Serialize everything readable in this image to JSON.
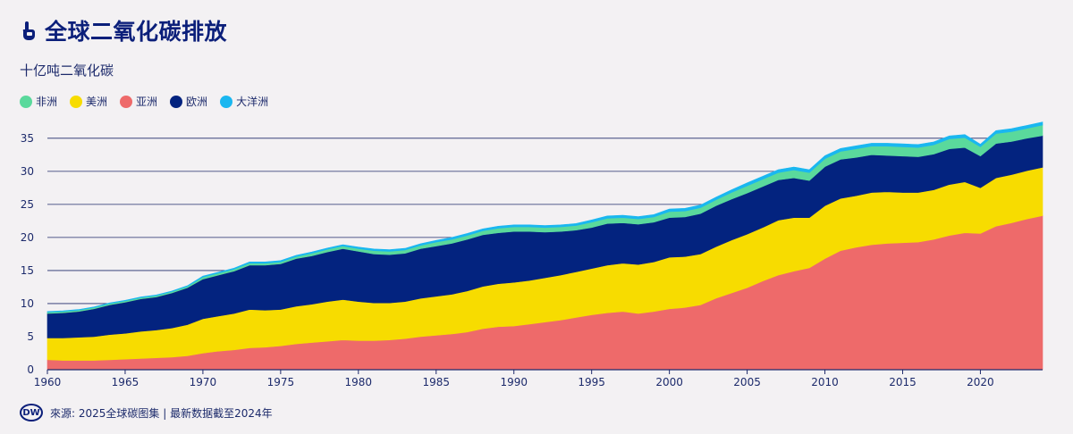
{
  "header": {
    "title": "全球二氧化碳排放",
    "subtitle": "十亿吨二氧化碳"
  },
  "footer": {
    "logo_text": "DW",
    "source": "來源: 2025全球碳图集 | 最新数据截至2024年"
  },
  "chart_data": {
    "type": "area",
    "stacked": true,
    "title": "全球二氧化碳排放",
    "subtitle": "十亿吨二氧化碳",
    "xlim": [
      1960,
      2024
    ],
    "ylim": [
      0,
      37
    ],
    "yticks": [
      0,
      5,
      10,
      15,
      20,
      25,
      30,
      35
    ],
    "xticks": [
      1960,
      1965,
      1970,
      1975,
      1980,
      1985,
      1990,
      1995,
      2000,
      2005,
      2010,
      2015,
      2020
    ],
    "grid": "horizontal",
    "legend_position": "top-left",
    "x": [
      1960,
      1961,
      1962,
      1963,
      1964,
      1965,
      1966,
      1967,
      1968,
      1969,
      1970,
      1971,
      1972,
      1973,
      1974,
      1975,
      1976,
      1977,
      1978,
      1979,
      1980,
      1981,
      1982,
      1983,
      1984,
      1985,
      1986,
      1987,
      1988,
      1989,
      1990,
      1991,
      1992,
      1993,
      1994,
      1995,
      1996,
      1997,
      1998,
      1999,
      2000,
      2001,
      2002,
      2003,
      2004,
      2005,
      2006,
      2007,
      2008,
      2009,
      2010,
      2011,
      2012,
      2013,
      2014,
      2015,
      2016,
      2017,
      2018,
      2019,
      2020,
      2021,
      2022,
      2023,
      2024
    ],
    "legend_order": [
      "非洲",
      "美洲",
      "亚洲",
      "欧洲",
      "大洋洲"
    ],
    "series": [
      {
        "name": "亚洲",
        "color": "#ee6a6a",
        "values": [
          1.5,
          1.4,
          1.4,
          1.4,
          1.5,
          1.6,
          1.7,
          1.8,
          1.9,
          2.1,
          2.5,
          2.8,
          3.0,
          3.3,
          3.4,
          3.6,
          3.9,
          4.1,
          4.3,
          4.5,
          4.4,
          4.4,
          4.5,
          4.7,
          5.0,
          5.2,
          5.4,
          5.7,
          6.2,
          6.5,
          6.6,
          6.9,
          7.2,
          7.5,
          7.9,
          8.3,
          8.6,
          8.8,
          8.5,
          8.8,
          9.2,
          9.4,
          9.8,
          10.8,
          11.6,
          12.4,
          13.4,
          14.3,
          14.9,
          15.4,
          16.8,
          18.0,
          18.5,
          18.9,
          19.1,
          19.2,
          19.3,
          19.7,
          20.3,
          20.7,
          20.6,
          21.7,
          22.2,
          22.8,
          23.3
        ]
      },
      {
        "name": "美洲",
        "color": "#f7dc00",
        "values": [
          3.3,
          3.4,
          3.5,
          3.6,
          3.8,
          3.9,
          4.1,
          4.2,
          4.4,
          4.7,
          5.2,
          5.3,
          5.5,
          5.8,
          5.6,
          5.5,
          5.7,
          5.8,
          6.0,
          6.1,
          5.9,
          5.7,
          5.6,
          5.6,
          5.8,
          5.9,
          6.0,
          6.2,
          6.4,
          6.5,
          6.6,
          6.6,
          6.7,
          6.8,
          6.9,
          7.0,
          7.2,
          7.3,
          7.4,
          7.5,
          7.8,
          7.7,
          7.7,
          7.8,
          8.0,
          8.1,
          8.1,
          8.3,
          8.1,
          7.6,
          8.0,
          7.9,
          7.8,
          7.9,
          7.8,
          7.6,
          7.5,
          7.5,
          7.7,
          7.7,
          6.9,
          7.3,
          7.3,
          7.3,
          7.3
        ]
      },
      {
        "name": "欧洲",
        "color": "#03237f",
        "values": [
          3.7,
          3.8,
          3.9,
          4.2,
          4.5,
          4.7,
          4.9,
          5.0,
          5.3,
          5.6,
          6.0,
          6.2,
          6.4,
          6.7,
          6.8,
          6.9,
          7.2,
          7.3,
          7.5,
          7.7,
          7.6,
          7.4,
          7.3,
          7.3,
          7.5,
          7.6,
          7.7,
          7.8,
          7.8,
          7.7,
          7.7,
          7.4,
          6.9,
          6.6,
          6.3,
          6.2,
          6.3,
          6.1,
          6.1,
          6.0,
          6.0,
          6.0,
          6.1,
          6.2,
          6.2,
          6.2,
          6.2,
          6.1,
          6.0,
          5.6,
          5.9,
          5.9,
          5.8,
          5.7,
          5.5,
          5.5,
          5.4,
          5.4,
          5.4,
          5.2,
          4.8,
          5.2,
          5.0,
          4.9,
          4.8
        ]
      },
      {
        "name": "非洲",
        "color": "#5ad99c",
        "values": [
          0.2,
          0.2,
          0.2,
          0.2,
          0.2,
          0.2,
          0.2,
          0.2,
          0.2,
          0.2,
          0.3,
          0.3,
          0.3,
          0.3,
          0.3,
          0.3,
          0.3,
          0.4,
          0.4,
          0.4,
          0.4,
          0.5,
          0.5,
          0.5,
          0.5,
          0.6,
          0.6,
          0.6,
          0.6,
          0.7,
          0.7,
          0.7,
          0.7,
          0.7,
          0.7,
          0.8,
          0.8,
          0.8,
          0.8,
          0.8,
          0.9,
          0.9,
          0.9,
          0.9,
          1.0,
          1.1,
          1.1,
          1.1,
          1.2,
          1.2,
          1.2,
          1.2,
          1.3,
          1.3,
          1.4,
          1.4,
          1.4,
          1.4,
          1.5,
          1.5,
          1.4,
          1.5,
          1.5,
          1.5,
          1.6
        ]
      },
      {
        "name": "大洋洲",
        "color": "#1ab7f0",
        "values": [
          0.1,
          0.1,
          0.1,
          0.1,
          0.1,
          0.1,
          0.1,
          0.1,
          0.1,
          0.1,
          0.15,
          0.15,
          0.15,
          0.2,
          0.2,
          0.2,
          0.2,
          0.2,
          0.2,
          0.2,
          0.25,
          0.25,
          0.25,
          0.25,
          0.25,
          0.25,
          0.3,
          0.3,
          0.3,
          0.3,
          0.3,
          0.3,
          0.3,
          0.3,
          0.3,
          0.35,
          0.35,
          0.35,
          0.35,
          0.35,
          0.4,
          0.4,
          0.4,
          0.4,
          0.4,
          0.45,
          0.45,
          0.45,
          0.45,
          0.45,
          0.45,
          0.45,
          0.45,
          0.45,
          0.45,
          0.45,
          0.45,
          0.45,
          0.45,
          0.45,
          0.4,
          0.45,
          0.45,
          0.45,
          0.45
        ]
      }
    ]
  },
  "colors": {
    "title": "#0b1f7a",
    "grid": "#1f2a6b",
    "background": "#f3f1f3"
  }
}
